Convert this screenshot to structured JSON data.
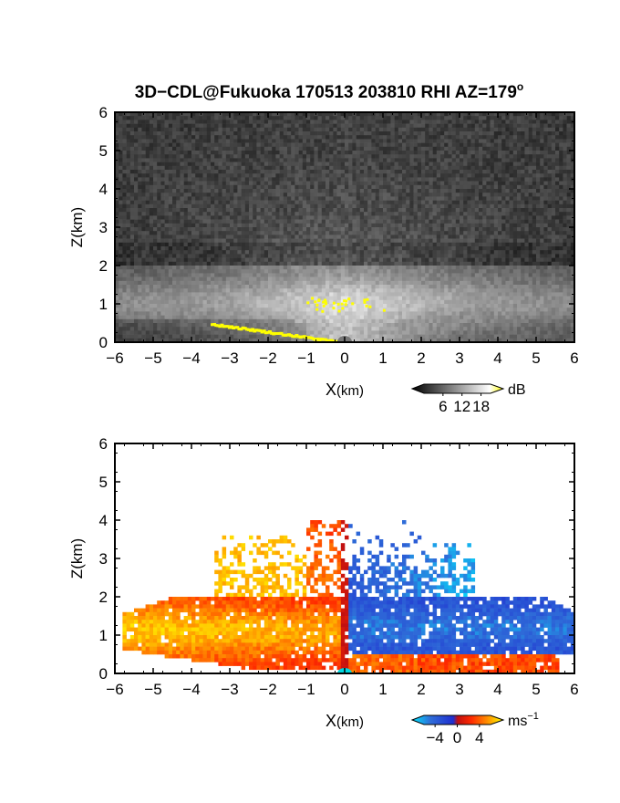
{
  "title_main": "3D−CDL@Fukuoka 170513 203810 RHI AZ=179",
  "title_sup": "o",
  "chart_data": [
    {
      "type": "heatmap",
      "quantity": "backscatter",
      "xlabel_main": "X",
      "xlabel_unit": "(km)",
      "ylabel": "Z(km)",
      "xlim": [
        -6,
        6
      ],
      "ylim": [
        0,
        6
      ],
      "x_ticks": [
        "−6",
        "−5",
        "−4",
        "−3",
        "−2",
        "−1",
        "0",
        "1",
        "2",
        "3",
        "4",
        "5",
        "6"
      ],
      "y_ticks": [
        "0",
        "1",
        "2",
        "3",
        "4",
        "5",
        "6"
      ],
      "colorbar": {
        "unit": "dB",
        "ticks": [
          "6",
          "12",
          "18"
        ],
        "range": [
          0,
          21
        ],
        "colors": [
          "#000000",
          "#ffffff",
          "#ffff00"
        ]
      },
      "layers": [
        {
          "description": "bright aerosol layer",
          "x_range": [
            -6,
            6
          ],
          "z_range": [
            0,
            2.0
          ],
          "level_dB": 12
        },
        {
          "description": "high-signal patch near radar",
          "x": 0,
          "z_range": [
            0.8,
            1.2
          ],
          "level_dB": 19
        },
        {
          "description": "ground clutter",
          "x_range": [
            -3.5,
            0
          ],
          "z_range": [
            0,
            0.5
          ],
          "level_dB": 19
        }
      ]
    },
    {
      "type": "heatmap",
      "quantity": "radial velocity",
      "xlabel_main": "X",
      "xlabel_unit": "(km)",
      "ylabel": "Z(km)",
      "xlim": [
        -6,
        6
      ],
      "ylim": [
        0,
        6
      ],
      "x_ticks": [
        "−6",
        "−5",
        "−4",
        "−3",
        "−2",
        "−1",
        "0",
        "1",
        "2",
        "3",
        "4",
        "5",
        "6"
      ],
      "y_ticks": [
        "0",
        "1",
        "2",
        "3",
        "4",
        "5",
        "6"
      ],
      "colorbar": {
        "unit_main": "ms",
        "unit_exp": "−1",
        "ticks": [
          "−4",
          "0",
          "4"
        ],
        "range": [
          -6,
          6
        ],
        "colors": [
          "#00e5ff",
          "#2f6dd8",
          "#1f2fd0",
          "#c01010",
          "#ff2a00",
          "#ff8c00",
          "#ffff00"
        ]
      },
      "regions": [
        {
          "x_range": [
            -6,
            0
          ],
          "z_range": [
            0,
            2.0
          ],
          "velocity_ms": 3
        },
        {
          "x_range": [
            -3.5,
            0
          ],
          "z_range": [
            2.0,
            3.8
          ],
          "velocity_ms": 5
        },
        {
          "x_range": [
            0,
            6
          ],
          "z_range": [
            0.5,
            2.0
          ],
          "velocity_ms": -3
        },
        {
          "x_range": [
            0,
            5.5
          ],
          "z_range": [
            0,
            0.5
          ],
          "velocity_ms": 3
        },
        {
          "x_range": [
            0,
            3.5
          ],
          "z_range": [
            2.0,
            3.5
          ],
          "velocity_ms": -4
        }
      ]
    }
  ]
}
